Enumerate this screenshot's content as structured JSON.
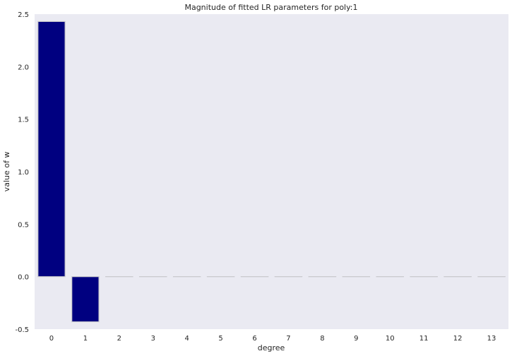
{
  "chart_data": {
    "type": "bar",
    "title": "Magnitude of fitted LR parameters for poly:1",
    "xlabel": "degree",
    "ylabel": "value of w",
    "categories": [
      "0",
      "1",
      "2",
      "3",
      "4",
      "5",
      "6",
      "7",
      "8",
      "9",
      "10",
      "11",
      "12",
      "13"
    ],
    "values": [
      2.43,
      -0.43,
      0,
      0,
      0,
      0,
      0,
      0,
      0,
      0,
      0,
      0,
      0,
      0
    ],
    "ylim": [
      -0.5,
      2.5
    ],
    "yticks": [
      "-0.5",
      "0.0",
      "0.5",
      "1.0",
      "1.5",
      "2.0",
      "2.5"
    ],
    "grid": false,
    "legend": "none",
    "colors": {
      "bar": "#000080",
      "bar_edge": "#c8c8cc",
      "background": "#eaeaf2"
    }
  }
}
